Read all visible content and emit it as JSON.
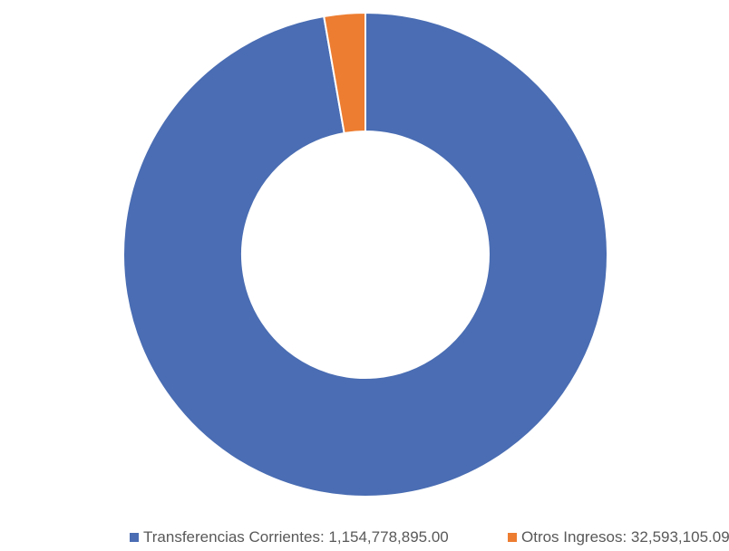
{
  "chart_data": {
    "type": "pie",
    "variant": "donut",
    "title": "",
    "categories": [
      "Transferencias Corrientes",
      "Otros Ingresos"
    ],
    "values": [
      1154778895.0,
      32593105.09
    ],
    "colors": [
      "#4a6db3",
      "#ed7d31"
    ],
    "legend_position": "bottom",
    "legend": [
      {
        "label": "Transferencias Corrientes: 1,154,778,895.00",
        "color": "#4a6db3"
      },
      {
        "label": "Otros Ingresos: 32,593,105.09",
        "color": "#ed7d31"
      }
    ]
  }
}
